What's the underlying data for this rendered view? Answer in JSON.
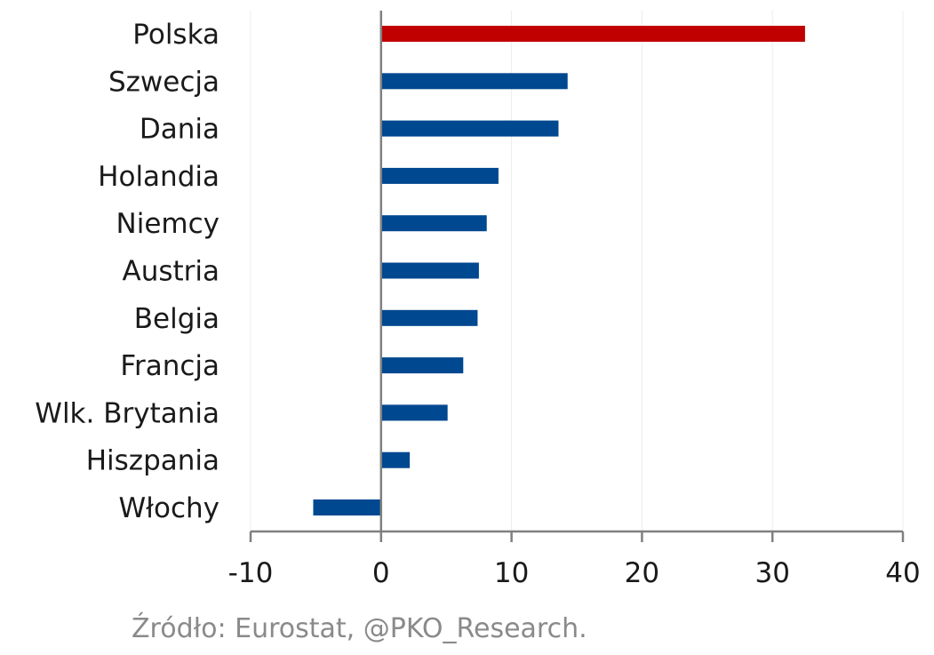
{
  "chart_data": {
    "type": "bar",
    "orientation": "horizontal",
    "title": "",
    "xlabel": "",
    "ylabel": "",
    "categories": [
      "Polska",
      "Szwecja",
      "Dania",
      "Holandia",
      "Niemcy",
      "Austria",
      "Belgia",
      "Francja",
      "Wlk. Brytania",
      "Hiszpania",
      "Włochy"
    ],
    "values": [
      32.5,
      14.3,
      13.6,
      9.0,
      8.1,
      7.5,
      7.4,
      6.3,
      5.1,
      2.2,
      -5.2
    ],
    "xlim": [
      -10,
      40
    ],
    "xticks": [
      -10,
      0,
      10,
      20,
      30,
      40
    ],
    "grid": "vertical",
    "legend": "none",
    "highlight_category": "Polska",
    "colors": {
      "bar": "#004890",
      "highlight": "#c00000",
      "axis": "#808080",
      "grid": "#ececec"
    }
  },
  "source": "Źródło: Eurostat, @PKO_Research."
}
